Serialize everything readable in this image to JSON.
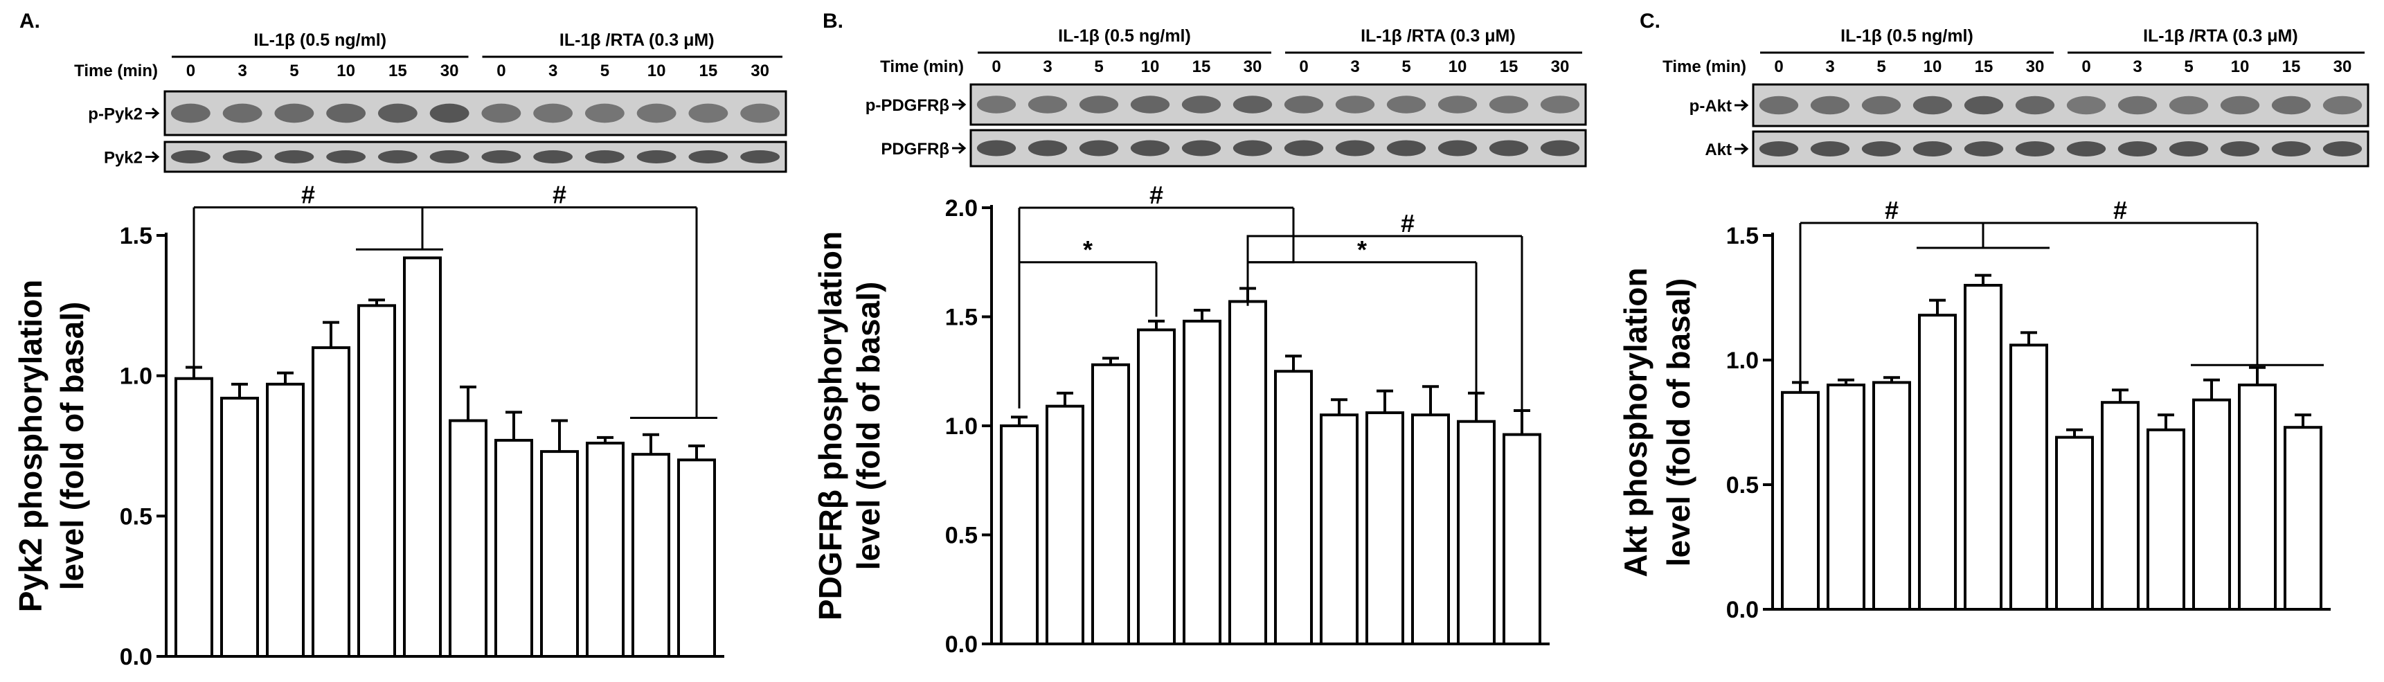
{
  "chart_data": [
    {
      "type": "bar",
      "panel_letter": "A.",
      "group_labels": [
        "IL-1β (0.5 ng/ml)",
        "IL-1β /RTA (0.3 μM)"
      ],
      "time_label": "Time (min)",
      "categories": [
        "0",
        "3",
        "5",
        "10",
        "15",
        "30",
        "0",
        "3",
        "5",
        "10",
        "15",
        "30"
      ],
      "blot_labels": [
        "p-Pyk2",
        "Pyk2"
      ],
      "ylabel_lines": [
        "Pyk2 phosphorylation",
        "level (fold of basal)"
      ],
      "ylim": [
        0,
        1.5
      ],
      "yticks": [
        "0.0",
        "0.5",
        "1.0",
        "1.5"
      ],
      "values": [
        0.99,
        0.92,
        0.97,
        1.1,
        1.25,
        1.42,
        0.84,
        0.77,
        0.73,
        0.76,
        0.72,
        0.7
      ],
      "errors": [
        0.04,
        0.05,
        0.04,
        0.09,
        0.02,
        0.0,
        0.12,
        0.1,
        0.11,
        0.02,
        0.07,
        0.05
      ],
      "significance": [
        "#",
        "#"
      ],
      "bar_fill": "#ffffff",
      "grid": false
    },
    {
      "type": "bar",
      "panel_letter": "B.",
      "group_labels": [
        "IL-1β (0.5 ng/ml)",
        "IL-1β /RTA (0.3 μM)"
      ],
      "time_label": "Time (min)",
      "categories": [
        "0",
        "3",
        "5",
        "10",
        "15",
        "30",
        "0",
        "3",
        "5",
        "10",
        "15",
        "30"
      ],
      "blot_labels": [
        "p-PDGFRβ",
        "PDGFRβ"
      ],
      "ylabel_lines": [
        "PDGFRβ phosphorylation",
        "level (fold of basal)"
      ],
      "ylim": [
        0,
        2.0
      ],
      "yticks": [
        "0.0",
        "0.5",
        "1.0",
        "1.5",
        "2.0"
      ],
      "values": [
        1.0,
        1.09,
        1.28,
        1.44,
        1.48,
        1.57,
        1.25,
        1.05,
        1.06,
        1.05,
        1.02,
        0.96
      ],
      "errors": [
        0.04,
        0.06,
        0.03,
        0.04,
        0.05,
        0.06,
        0.07,
        0.07,
        0.1,
        0.13,
        0.13,
        0.11
      ],
      "significance": [
        "#",
        "*",
        "*",
        "#"
      ],
      "bar_fill": "#ffffff",
      "grid": false
    },
    {
      "type": "bar",
      "panel_letter": "C.",
      "group_labels": [
        "IL-1β (0.5 ng/ml)",
        "IL-1β /RTA (0.3 μM)"
      ],
      "time_label": "Time (min)",
      "categories": [
        "0",
        "3",
        "5",
        "10",
        "15",
        "30",
        "0",
        "3",
        "5",
        "10",
        "15",
        "30"
      ],
      "blot_labels": [
        "p-Akt",
        "Akt"
      ],
      "ylabel_lines": [
        "Akt phosphorylation",
        "level (fold of basal)"
      ],
      "ylim": [
        0,
        1.5
      ],
      "yticks": [
        "0.0",
        "0.5",
        "1.0",
        "1.5"
      ],
      "values": [
        0.87,
        0.9,
        0.91,
        1.18,
        1.3,
        1.06,
        0.69,
        0.83,
        0.72,
        0.84,
        0.9,
        0.73
      ],
      "errors": [
        0.04,
        0.02,
        0.02,
        0.06,
        0.04,
        0.05,
        0.03,
        0.05,
        0.06,
        0.08,
        0.07,
        0.05
      ],
      "significance": [
        "#",
        "#"
      ],
      "bar_fill": "#ffffff",
      "grid": false
    }
  ]
}
